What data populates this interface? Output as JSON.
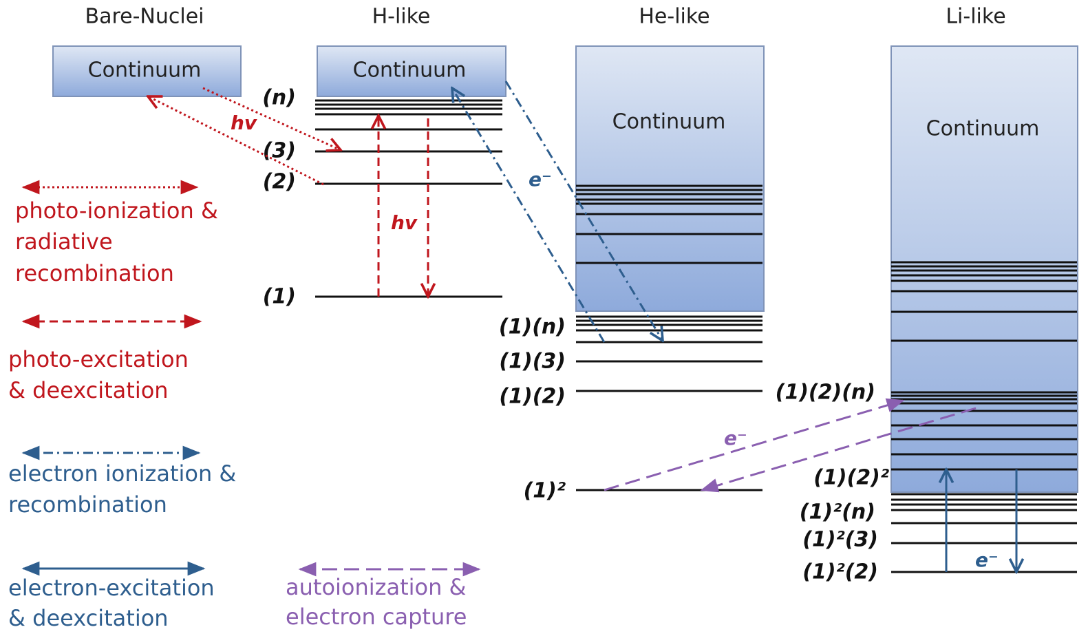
{
  "columns": [
    {
      "title": "Bare-Nuclei",
      "continuum": "Continuum"
    },
    {
      "title": "H-like",
      "continuum": "Continuum",
      "levels": [
        "(n)",
        "(3)",
        "(2)",
        "(1)"
      ]
    },
    {
      "title": "He-like",
      "continuum": "Continuum",
      "levels": [
        "(1)(n)",
        "(1)(3)",
        "(1)(2)",
        "(1)²"
      ]
    },
    {
      "title": "Li-like",
      "continuum": "Continuum",
      "levels": [
        "(1)(2)(n)",
        "(1)(2)²",
        "(1)²(n)",
        "(1)²(3)",
        "(1)²(2)"
      ]
    }
  ],
  "annotations": [
    "hv",
    "hv",
    "e⁻",
    "e⁻",
    "e⁻"
  ],
  "legend": [
    {
      "lines": [
        "photo-ionization &",
        "radiative",
        "recombination"
      ]
    },
    {
      "lines": [
        "photo-excitation",
        "& deexcitation"
      ]
    },
    {
      "lines": [
        "electron ionization &",
        "recombination"
      ]
    },
    {
      "lines": [
        "electron-excitation",
        "& deexcitation"
      ]
    },
    {
      "lines": [
        "autoionization &",
        "electron capture"
      ]
    }
  ]
}
